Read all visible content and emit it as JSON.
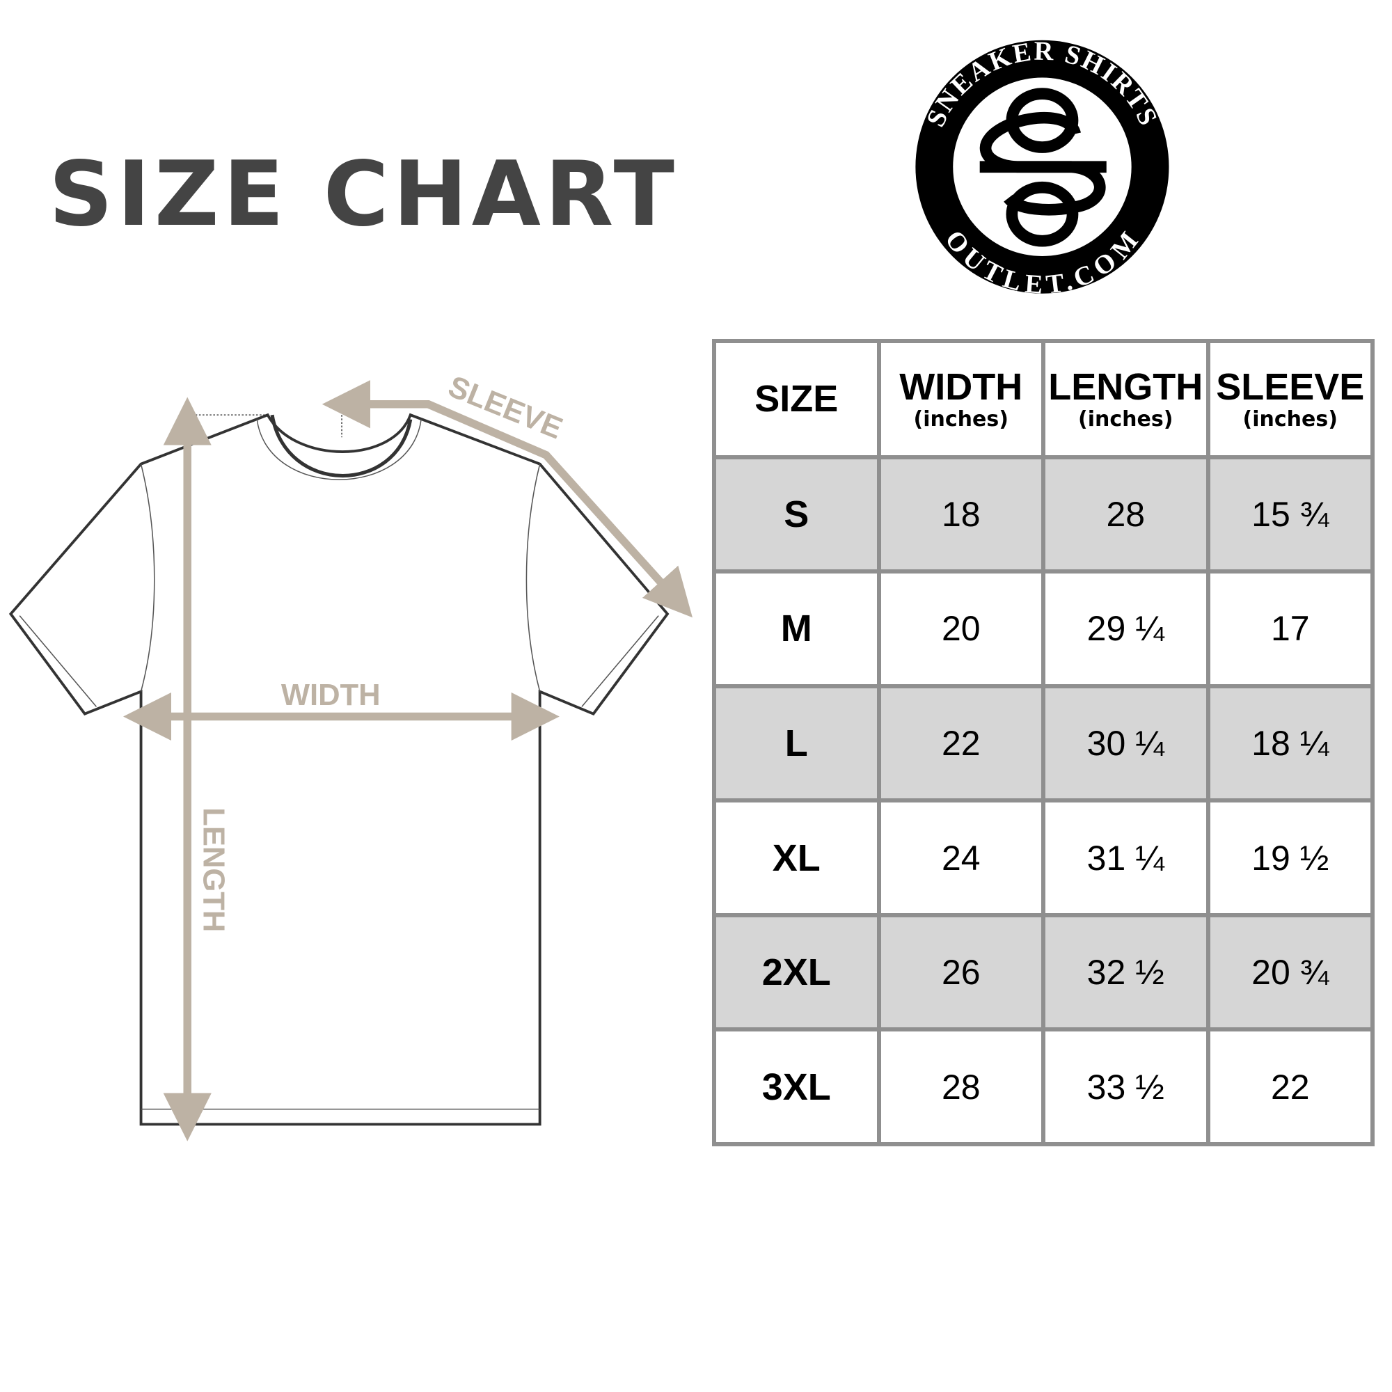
{
  "title": "SIZE CHART",
  "logo": {
    "top_text": "SNEAKER SHIRTS",
    "bottom_text": "OUTLET.COM",
    "monogram": "SO"
  },
  "diagram": {
    "sleeve_label": "SLEEVE",
    "width_label": "WIDTH",
    "length_label": "LENGTH",
    "arrow_color": "#bdb2a4"
  },
  "table": {
    "headers": [
      {
        "main": "SIZE",
        "sub": ""
      },
      {
        "main": "WIDTH",
        "sub": "(inches)"
      },
      {
        "main": "LENGTH",
        "sub": "(inches)"
      },
      {
        "main": "SLEEVE",
        "sub": "(inches)"
      }
    ],
    "rows": [
      [
        "S",
        "18",
        "28",
        "15 ¾"
      ],
      [
        "M",
        "20",
        "29 ¼",
        "17"
      ],
      [
        "L",
        "22",
        "30 ¼",
        "18 ¼"
      ],
      [
        "XL",
        "24",
        "31 ¼",
        "19 ½"
      ],
      [
        "2XL",
        "26",
        "32 ½",
        "20 ¾"
      ],
      [
        "3XL",
        "28",
        "33 ½",
        "22"
      ]
    ]
  }
}
